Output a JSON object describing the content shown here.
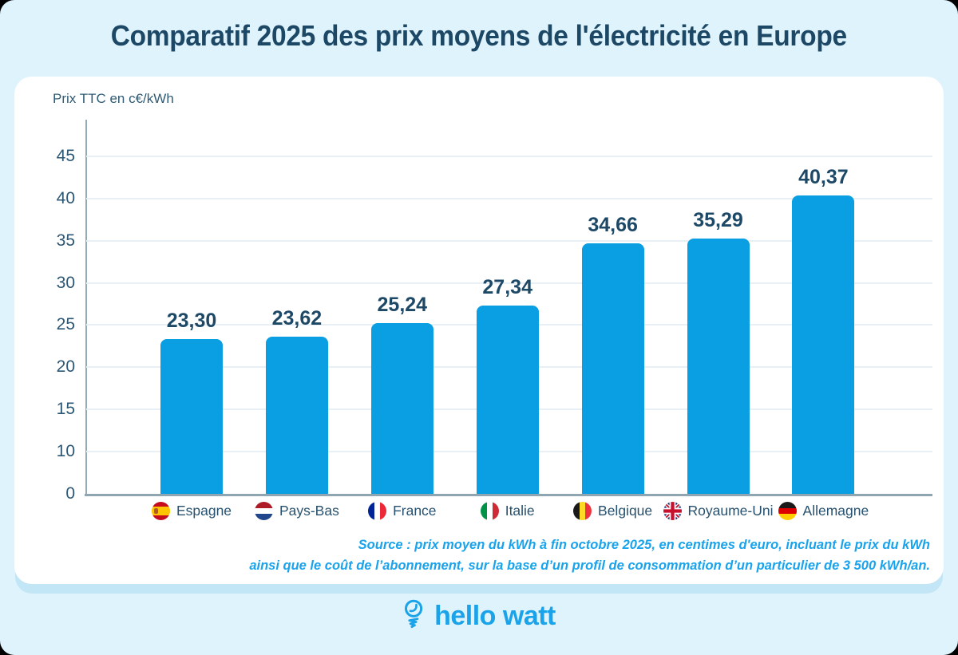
{
  "title": "Comparatif 2025 des prix moyens de l'électricité en Europe",
  "chart_data": {
    "type": "bar",
    "title": "Comparatif 2025 des prix moyens de l'électricité en Europe",
    "ylabel": "Prix TTC en c€/kWh",
    "yticks": [
      45,
      40,
      35,
      30,
      25,
      20,
      15,
      10,
      0
    ],
    "ylim": [
      0,
      48
    ],
    "grid": true,
    "legend_position": "below-bars",
    "bar_color": "#0A9EE3",
    "categories": [
      "Espagne",
      "Pays-Bas",
      "France",
      "Italie",
      "Belgique",
      "Royaume-Uni",
      "Allemagne"
    ],
    "values": [
      23.3,
      23.62,
      25.24,
      27.34,
      34.66,
      35.29,
      40.37
    ],
    "value_labels": [
      "23,30",
      "23,62",
      "25,24",
      "27,34",
      "34,66",
      "35,29",
      "40,37"
    ],
    "flags": [
      {
        "name": "flag-espagne",
        "orientation": "horizontal",
        "stripes": [
          [
            "#C60B1E",
            27
          ],
          [
            "#FFC400",
            46
          ],
          [
            "#C60B1E",
            27
          ]
        ],
        "emblem": true
      },
      {
        "name": "flag-pays-bas",
        "orientation": "horizontal",
        "stripes": [
          [
            "#AE1C28",
            34
          ],
          [
            "#FFFFFF",
            32
          ],
          [
            "#21468B",
            34
          ]
        ]
      },
      {
        "name": "flag-france",
        "orientation": "vertical",
        "stripes": [
          [
            "#002395",
            34
          ],
          [
            "#FFFFFF",
            32
          ],
          [
            "#ED2939",
            34
          ]
        ]
      },
      {
        "name": "flag-italie",
        "orientation": "vertical",
        "stripes": [
          [
            "#009246",
            34
          ],
          [
            "#FFFFFF",
            32
          ],
          [
            "#CE2B37",
            34
          ]
        ]
      },
      {
        "name": "flag-belgique",
        "orientation": "vertical",
        "stripes": [
          [
            "#1A1A1A",
            34
          ],
          [
            "#FDDA24",
            32
          ],
          [
            "#EF3340",
            34
          ]
        ]
      },
      {
        "name": "flag-royaume-uni",
        "orientation": "uk",
        "stripes": []
      },
      {
        "name": "flag-allemagne",
        "orientation": "horizontal",
        "stripes": [
          [
            "#1A1A1A",
            34
          ],
          [
            "#DD0000",
            32
          ],
          [
            "#FFCE00",
            34
          ]
        ]
      }
    ]
  },
  "source": {
    "line1": "Source : prix moyen du kWh à fin octobre 2025, en centimes d'euro, incluant le prix du kWh",
    "line2": "ainsi que le coût de l’abonnement, sur la base d’un profil de consommation d’un particulier de 3 500 kWh/an."
  },
  "footer": {
    "brand": "hello watt"
  },
  "colors": {
    "background": "#DFF3FD",
    "card": "#FFFFFF",
    "card_shadow": "#C3E6F6",
    "navy_text": "#1C4866",
    "tick_text": "#2B5674",
    "bar": "#0A9EE3",
    "gridline": "#E9F0F5",
    "axis": "#8FA5B2",
    "accent_blue": "#18A3EC"
  }
}
